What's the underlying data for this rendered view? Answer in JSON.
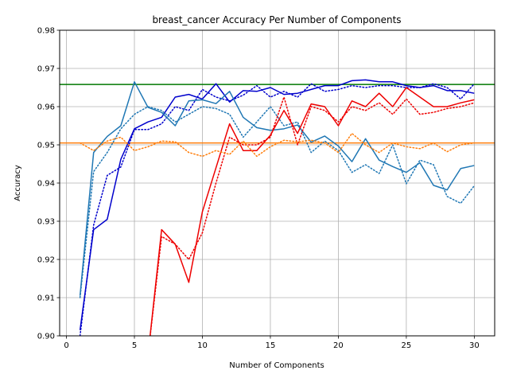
{
  "chart_data": {
    "type": "line",
    "title": "breast_cancer Accuracy Per Number of Components",
    "xlabel": "Number of Components",
    "ylabel": "Accuracy",
    "xlim": [
      -0.5,
      31.5
    ],
    "ylim": [
      0.9,
      0.98
    ],
    "xticks": [
      0,
      5,
      10,
      15,
      20,
      25,
      30
    ],
    "yticks": [
      0.9,
      0.91,
      0.92,
      0.93,
      0.94,
      0.95,
      0.96,
      0.97,
      0.98
    ],
    "grid": true,
    "x": [
      1,
      2,
      3,
      4,
      5,
      6,
      7,
      8,
      9,
      10,
      11,
      12,
      13,
      14,
      15,
      16,
      17,
      18,
      19,
      20,
      21,
      22,
      23,
      24,
      25,
      26,
      27,
      28,
      29,
      30
    ],
    "series": [
      {
        "color": "#0000cc",
        "style": "solid",
        "values": [
          0.9015,
          0.9278,
          0.9305,
          0.9462,
          0.9542,
          0.956,
          0.9572,
          0.9625,
          0.9632,
          0.962,
          0.966,
          0.9612,
          0.9642,
          0.964,
          0.965,
          0.9632,
          0.9635,
          0.9645,
          0.9655,
          0.9655,
          0.9668,
          0.967,
          0.9665,
          0.9665,
          0.9655,
          0.965,
          0.9655,
          0.9642,
          0.9642,
          0.9635
        ]
      },
      {
        "color": "#0000cc",
        "style": "dotted",
        "values": [
          0.9,
          0.929,
          0.942,
          0.9442,
          0.954,
          0.954,
          0.9555,
          0.96,
          0.959,
          0.9645,
          0.9625,
          0.9615,
          0.963,
          0.9655,
          0.9625,
          0.964,
          0.9625,
          0.966,
          0.964,
          0.9645,
          0.9655,
          0.965,
          0.9655,
          0.9655,
          0.965,
          0.965,
          0.966,
          0.965,
          0.962,
          0.966
        ]
      },
      {
        "color": "#1f77b4",
        "style": "solid",
        "values": [
          0.9105,
          0.948,
          0.9522,
          0.955,
          0.9665,
          0.9598,
          0.9585,
          0.955,
          0.9615,
          0.9618,
          0.9608,
          0.964,
          0.9572,
          0.9545,
          0.9538,
          0.9542,
          0.9552,
          0.9507,
          0.9523,
          0.9497,
          0.9456,
          0.9516,
          0.946,
          0.9443,
          0.9428,
          0.9453,
          0.9394,
          0.9382,
          0.9438,
          0.9446
        ]
      },
      {
        "color": "#1f77b4",
        "style": "dotted",
        "values": [
          0.91,
          0.943,
          0.948,
          0.9542,
          0.958,
          0.96,
          0.959,
          0.956,
          0.958,
          0.96,
          0.9595,
          0.958,
          0.952,
          0.956,
          0.96,
          0.955,
          0.956,
          0.948,
          0.951,
          0.9485,
          0.9428,
          0.9448,
          0.9425,
          0.95,
          0.9398,
          0.946,
          0.9448,
          0.9365,
          0.9347,
          0.9393
        ]
      },
      {
        "color": "#ee0000",
        "style": "solid",
        "values": [
          null,
          null,
          null,
          null,
          null,
          0.895,
          0.9278,
          0.924,
          0.914,
          0.9325,
          0.944,
          0.9555,
          0.9485,
          0.9485,
          0.9525,
          0.959,
          0.953,
          0.9607,
          0.96,
          0.955,
          0.9615,
          0.96,
          0.9635,
          0.96,
          0.965,
          0.9625,
          0.96,
          0.96,
          0.961,
          0.9618
        ]
      },
      {
        "color": "#ee0000",
        "style": "dotted",
        "values": [
          null,
          null,
          null,
          null,
          null,
          0.895,
          0.926,
          0.924,
          0.92,
          0.927,
          0.94,
          0.952,
          0.95,
          0.95,
          0.952,
          0.9625,
          0.95,
          0.96,
          0.959,
          0.956,
          0.96,
          0.959,
          0.961,
          0.958,
          0.962,
          0.958,
          0.9585,
          0.9595,
          0.96,
          0.961
        ]
      },
      {
        "color": "#ff7f0e",
        "style": "dotted",
        "values": [
          0.9505,
          0.9485,
          0.951,
          0.952,
          0.9485,
          0.9495,
          0.951,
          0.9508,
          0.948,
          0.947,
          0.9485,
          0.9475,
          0.951,
          0.947,
          0.9495,
          0.9512,
          0.9508,
          0.9512,
          0.9505,
          0.948,
          0.953,
          0.95,
          0.948,
          0.9505,
          0.9495,
          0.949,
          0.9505,
          0.9482,
          0.95,
          0.9505
        ]
      }
    ],
    "hlines": [
      {
        "y": 0.9658,
        "color": "#007700"
      },
      {
        "y": 0.9505,
        "color": "#ff7f0e"
      }
    ]
  }
}
